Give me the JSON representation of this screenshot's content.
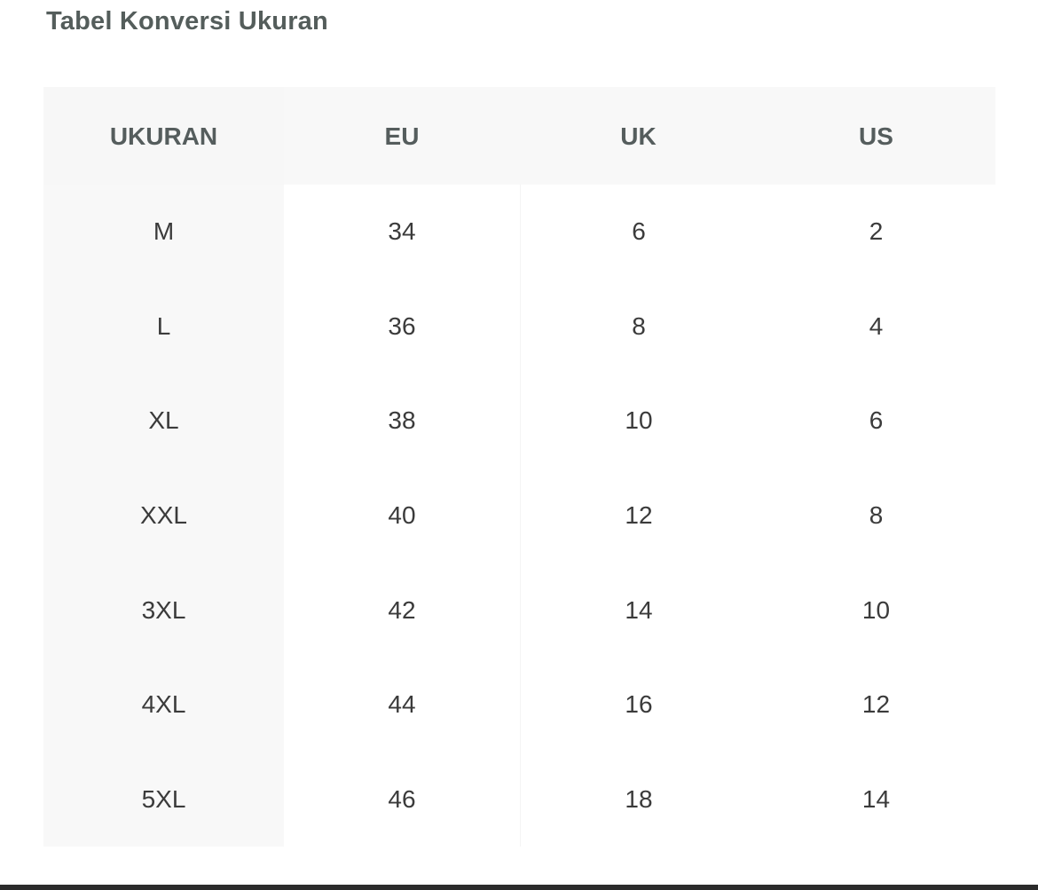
{
  "title": "Tabel Konversi Ukuran",
  "table": {
    "headers": [
      "UKURAN",
      "EU",
      "UK",
      "US"
    ],
    "rows": [
      [
        "M",
        "34",
        "6",
        "2"
      ],
      [
        "L",
        "36",
        "8",
        "4"
      ],
      [
        "XL",
        "38",
        "10",
        "6"
      ],
      [
        "XXL",
        "40",
        "12",
        "8"
      ],
      [
        "3XL",
        "42",
        "14",
        "10"
      ],
      [
        "4XL",
        "44",
        "16",
        "12"
      ],
      [
        "5XL",
        "46",
        "18",
        "14"
      ]
    ]
  },
  "colors": {
    "header_bg": "#f8f8f8",
    "title_text": "#545d5b",
    "cell_text": "#3b3b3b"
  }
}
